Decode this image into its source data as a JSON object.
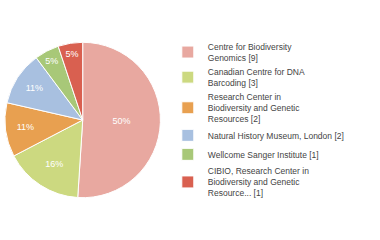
{
  "chart_data": {
    "type": "pie",
    "categories": [
      "Centre for Biodiversity\nGenomics [9]",
      "Canadian Centre for DNA\nBarcoding [3]",
      "Research Center in\nBiodiversity and Genetic\nResources [2]",
      "Natural History Museum, London [2]",
      "Wellcome Sanger Institute [1]",
      "CIBIO, Research Center in\nBiodiversity and Genetic\nResource... [1]"
    ],
    "values": [
      50,
      16,
      11,
      11,
      5,
      5
    ],
    "value_labels": [
      "50%",
      "16%",
      "11%",
      "11%",
      "5%",
      "5%"
    ],
    "colors": [
      "#e8a8a0",
      "#ccd980",
      "#e8a050",
      "#a8c0e0",
      "#a8c878",
      "#d96050"
    ],
    "data_labels": true,
    "legend": "right"
  }
}
